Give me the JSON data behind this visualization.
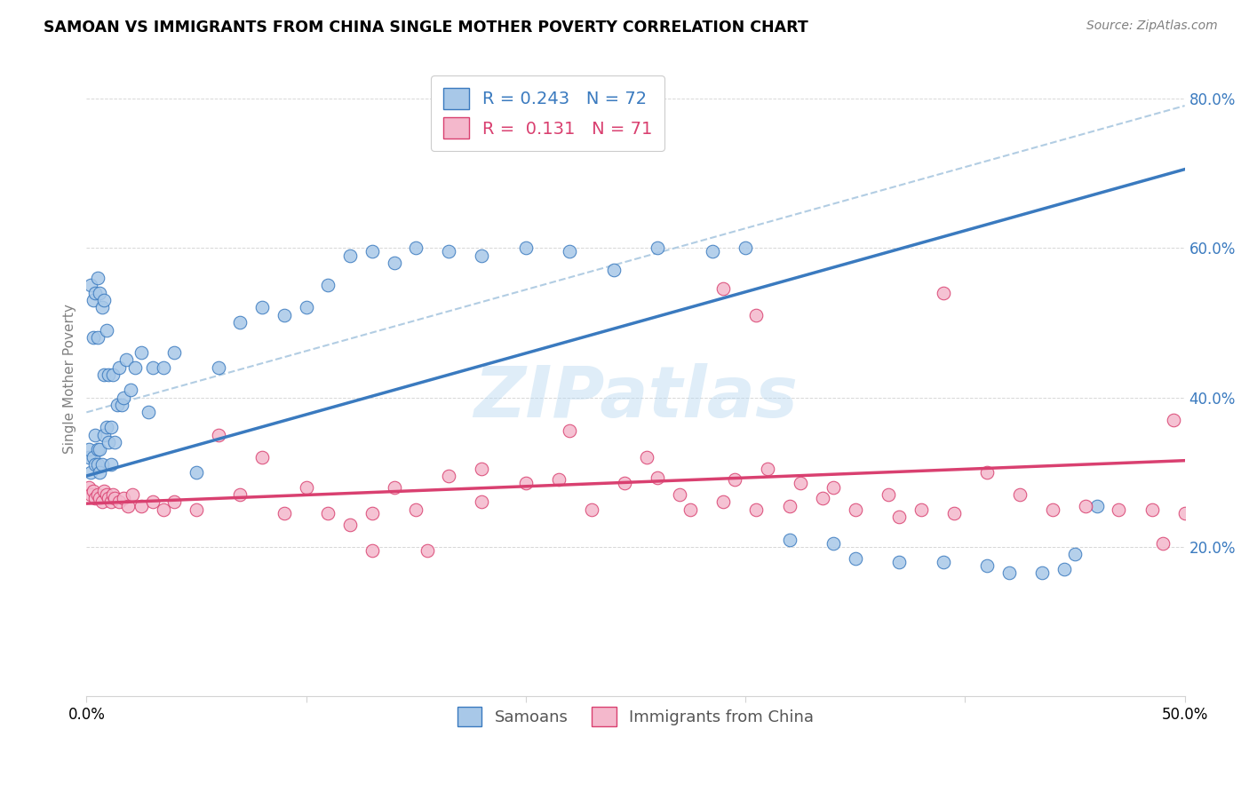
{
  "title": "SAMOAN VS IMMIGRANTS FROM CHINA SINGLE MOTHER POVERTY CORRELATION CHART",
  "source": "Source: ZipAtlas.com",
  "ylabel": "Single Mother Poverty",
  "legend_samoans": "Samoans",
  "legend_china": "Immigrants from China",
  "R_samoans": 0.243,
  "N_samoans": 72,
  "R_china": 0.131,
  "N_china": 71,
  "color_samoans": "#a8c8e8",
  "color_china": "#f4b8cc",
  "line_color_samoans": "#3a7abf",
  "line_color_china": "#d94070",
  "line_color_dashed": "#aac8e0",
  "watermark": "ZIPatlas",
  "xlim": [
    0.0,
    0.5
  ],
  "ylim": [
    0.0,
    0.85
  ],
  "yticks": [
    0.2,
    0.4,
    0.6,
    0.8
  ],
  "ytick_labels": [
    "20.0%",
    "40.0%",
    "60.0%",
    "80.0%"
  ],
  "xticks": [
    0.0,
    0.1,
    0.2,
    0.3,
    0.4,
    0.5
  ],
  "xtick_labels": [
    "0.0%",
    "",
    "",
    "",
    "",
    "50.0%"
  ],
  "samoans_x": [
    0.001,
    0.001,
    0.002,
    0.002,
    0.003,
    0.003,
    0.003,
    0.004,
    0.004,
    0.004,
    0.005,
    0.005,
    0.005,
    0.005,
    0.006,
    0.006,
    0.006,
    0.007,
    0.007,
    0.008,
    0.008,
    0.008,
    0.009,
    0.009,
    0.01,
    0.01,
    0.011,
    0.011,
    0.012,
    0.013,
    0.014,
    0.015,
    0.016,
    0.017,
    0.018,
    0.02,
    0.022,
    0.025,
    0.028,
    0.03,
    0.035,
    0.04,
    0.05,
    0.06,
    0.07,
    0.08,
    0.09,
    0.1,
    0.11,
    0.12,
    0.13,
    0.14,
    0.15,
    0.165,
    0.18,
    0.2,
    0.22,
    0.24,
    0.26,
    0.285,
    0.3,
    0.32,
    0.34,
    0.35,
    0.37,
    0.39,
    0.41,
    0.42,
    0.435,
    0.445,
    0.45,
    0.46
  ],
  "samoans_y": [
    0.32,
    0.33,
    0.55,
    0.3,
    0.53,
    0.32,
    0.48,
    0.31,
    0.54,
    0.35,
    0.33,
    0.56,
    0.31,
    0.48,
    0.54,
    0.33,
    0.3,
    0.52,
    0.31,
    0.53,
    0.35,
    0.43,
    0.36,
    0.49,
    0.34,
    0.43,
    0.31,
    0.36,
    0.43,
    0.34,
    0.39,
    0.44,
    0.39,
    0.4,
    0.45,
    0.41,
    0.44,
    0.46,
    0.38,
    0.44,
    0.44,
    0.46,
    0.3,
    0.44,
    0.5,
    0.52,
    0.51,
    0.52,
    0.55,
    0.59,
    0.595,
    0.58,
    0.6,
    0.595,
    0.59,
    0.6,
    0.595,
    0.57,
    0.6,
    0.595,
    0.6,
    0.21,
    0.205,
    0.185,
    0.18,
    0.18,
    0.175,
    0.165,
    0.165,
    0.17,
    0.19,
    0.255
  ],
  "china_x": [
    0.001,
    0.002,
    0.003,
    0.004,
    0.005,
    0.006,
    0.007,
    0.008,
    0.009,
    0.01,
    0.011,
    0.012,
    0.013,
    0.015,
    0.017,
    0.019,
    0.021,
    0.025,
    0.03,
    0.035,
    0.04,
    0.05,
    0.06,
    0.07,
    0.08,
    0.09,
    0.1,
    0.11,
    0.12,
    0.13,
    0.14,
    0.15,
    0.165,
    0.18,
    0.2,
    0.215,
    0.23,
    0.245,
    0.26,
    0.275,
    0.29,
    0.305,
    0.32,
    0.335,
    0.35,
    0.365,
    0.38,
    0.395,
    0.41,
    0.425,
    0.44,
    0.455,
    0.47,
    0.485,
    0.295,
    0.31,
    0.325,
    0.255,
    0.37,
    0.29,
    0.305,
    0.39,
    0.13,
    0.22,
    0.34,
    0.18,
    0.27,
    0.155,
    0.49,
    0.5,
    0.495
  ],
  "china_y": [
    0.28,
    0.27,
    0.275,
    0.265,
    0.27,
    0.265,
    0.26,
    0.275,
    0.27,
    0.265,
    0.26,
    0.27,
    0.265,
    0.26,
    0.265,
    0.255,
    0.27,
    0.255,
    0.26,
    0.25,
    0.26,
    0.25,
    0.35,
    0.27,
    0.32,
    0.245,
    0.28,
    0.245,
    0.23,
    0.245,
    0.28,
    0.25,
    0.295,
    0.305,
    0.285,
    0.29,
    0.25,
    0.285,
    0.293,
    0.25,
    0.26,
    0.25,
    0.255,
    0.265,
    0.25,
    0.27,
    0.25,
    0.245,
    0.3,
    0.27,
    0.25,
    0.255,
    0.25,
    0.25,
    0.29,
    0.305,
    0.285,
    0.32,
    0.24,
    0.545,
    0.51,
    0.54,
    0.195,
    0.355,
    0.28,
    0.26,
    0.27,
    0.195,
    0.205,
    0.245,
    0.37
  ]
}
